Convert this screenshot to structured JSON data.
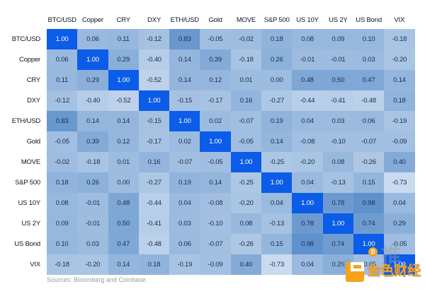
{
  "chart_data": {
    "type": "heatmap",
    "title": "",
    "categories": [
      "BTC/USD",
      "Copper",
      "CRY",
      "DXY",
      "ETH/USD",
      "Gold",
      "MOVE",
      "S&P 500",
      "US 10Y",
      "US 2Y",
      "US Bond",
      "VIX"
    ],
    "matrix": [
      [
        1.0,
        0.06,
        0.11,
        -0.12,
        0.83,
        -0.05,
        -0.02,
        0.18,
        0.08,
        0.09,
        0.1,
        -0.18
      ],
      [
        0.06,
        1.0,
        0.29,
        -0.4,
        0.14,
        0.39,
        -0.18,
        0.26,
        -0.01,
        -0.01,
        0.03,
        -0.2
      ],
      [
        0.11,
        0.29,
        1.0,
        -0.52,
        0.14,
        0.12,
        0.01,
        0.0,
        0.48,
        0.5,
        0.47,
        0.14
      ],
      [
        -0.12,
        -0.4,
        -0.52,
        1.0,
        -0.15,
        -0.17,
        0.16,
        -0.27,
        -0.44,
        -0.41,
        -0.48,
        0.18
      ],
      [
        0.83,
        0.14,
        0.14,
        -0.15,
        1.0,
        0.02,
        -0.07,
        0.19,
        0.04,
        0.03,
        0.06,
        -0.19
      ],
      [
        -0.05,
        0.39,
        0.12,
        -0.17,
        0.02,
        1.0,
        -0.05,
        0.14,
        -0.08,
        -0.1,
        -0.07,
        -0.09
      ],
      [
        -0.02,
        -0.18,
        0.01,
        0.16,
        -0.07,
        -0.05,
        1.0,
        -0.25,
        -0.2,
        0.08,
        -0.26,
        0.4
      ],
      [
        0.18,
        0.26,
        0.0,
        -0.27,
        0.19,
        0.14,
        -0.25,
        1.0,
        0.04,
        -0.13,
        0.15,
        -0.73
      ],
      [
        0.08,
        -0.01,
        0.48,
        -0.44,
        0.04,
        -0.08,
        -0.2,
        0.04,
        1.0,
        0.78,
        0.98,
        0.04
      ],
      [
        0.09,
        -0.01,
        0.5,
        -0.41,
        0.03,
        -0.1,
        0.08,
        -0.13,
        0.78,
        1.0,
        0.74,
        0.29
      ],
      [
        0.1,
        0.03,
        0.47,
        -0.48,
        0.06,
        -0.07,
        -0.26,
        0.15,
        0.98,
        0.74,
        1.0,
        -0.05
      ],
      [
        -0.18,
        -0.2,
        0.14,
        0.18,
        -0.19,
        -0.09,
        0.4,
        -0.73,
        0.04,
        0.29,
        -0.05,
        1.0
      ]
    ],
    "value_range": [
      -1,
      1
    ],
    "legend": "none",
    "colors": {
      "diagonal": "#0b5ce8",
      "positive_end": "#5e91cc",
      "negative_end": "#dbe7f4",
      "cell_text": "#1c2c49",
      "diagonal_text": "#ffffff",
      "header_text": "#0d1421",
      "source_text": "#94999f"
    }
  },
  "footer": {
    "source": "Sources: Bloomberg and Coinbase."
  },
  "watermark": {
    "text": "金色财经",
    "ghost_text": "推",
    "coin_symbol": "₿",
    "orange": "#f7a11a"
  }
}
